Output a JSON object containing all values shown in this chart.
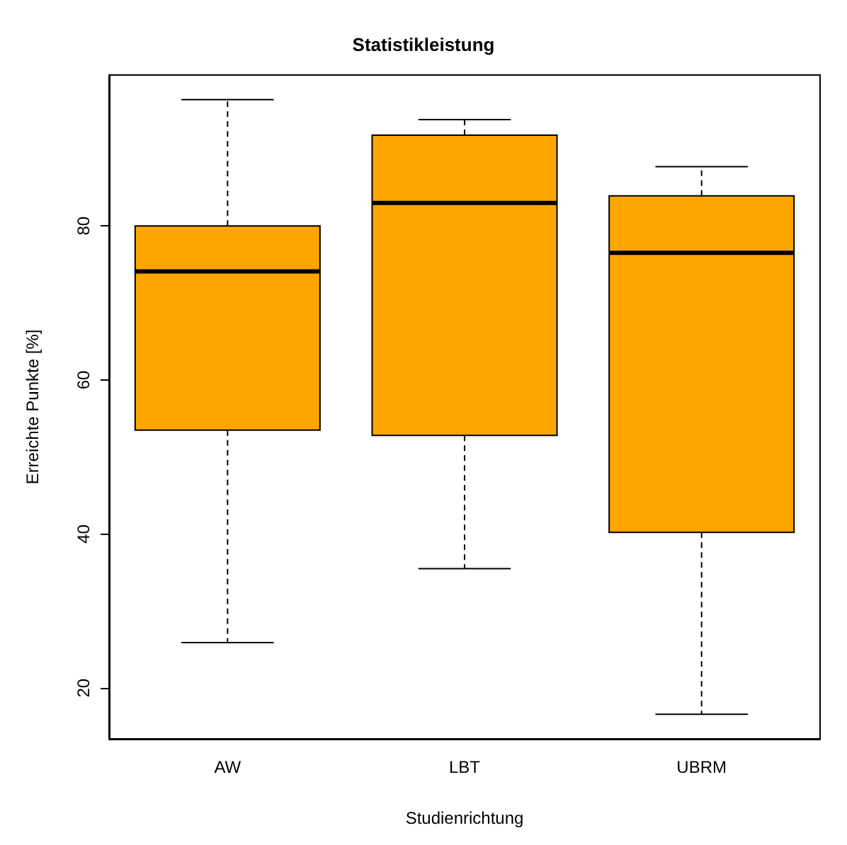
{
  "chart_data": {
    "type": "box",
    "title": "Statistikleistung",
    "xlabel": "Studienrichtung",
    "ylabel": "Erreichte Punkte [%]",
    "categories": [
      "AW",
      "LBT",
      "UBRM"
    ],
    "color": "#ffa500",
    "boxes": [
      {
        "low": 25.9,
        "q1": 53.5,
        "median": 74.1,
        "q3": 80,
        "high": 96.4
      },
      {
        "low": 35.5,
        "q1": 52.8,
        "median": 83,
        "q3": 91.8,
        "high": 93.8
      },
      {
        "low": 16.6,
        "q1": 40.2,
        "median": 76.5,
        "q3": 83.9,
        "high": 87.7
      }
    ],
    "ylim": [
      13.4,
      99.6
    ],
    "yticks": [
      20,
      40,
      60,
      80
    ],
    "grid": false
  }
}
